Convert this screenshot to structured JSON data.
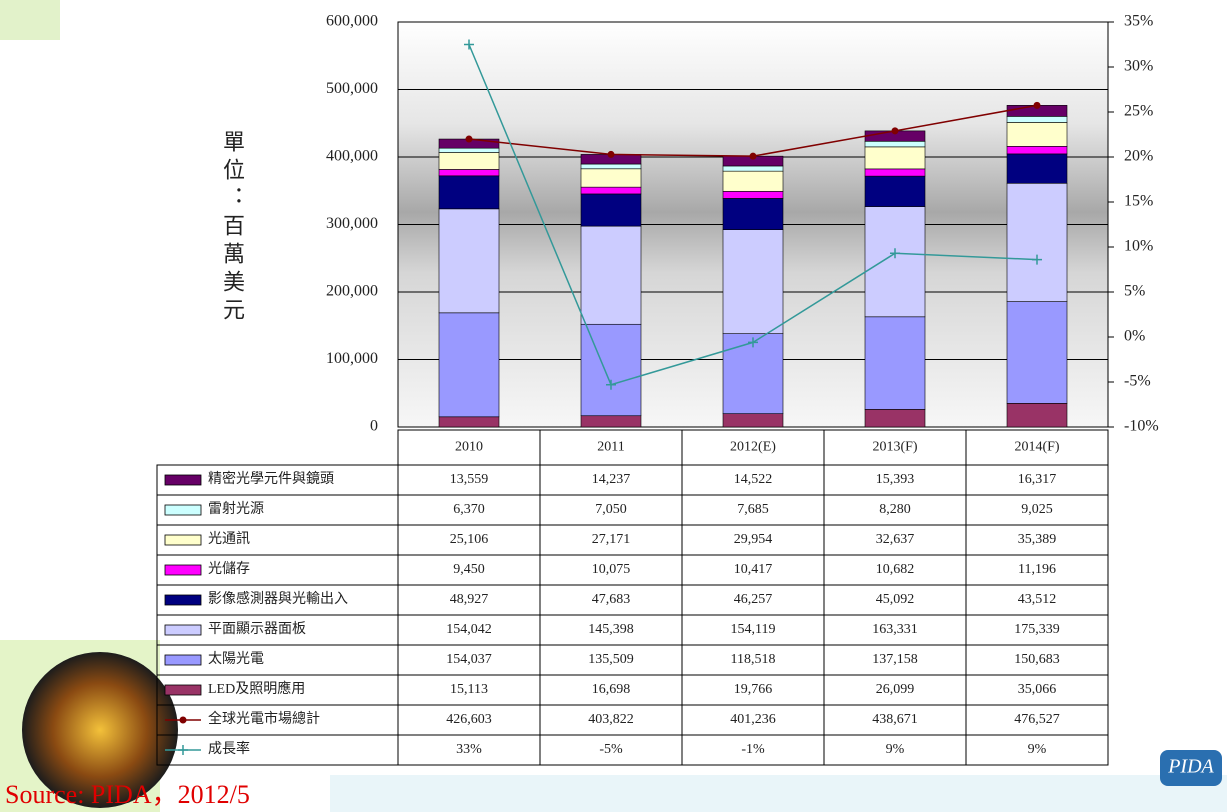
{
  "chart_data": {
    "type": "bar",
    "stacked": true,
    "y_label": "單位：百萬美元",
    "categories": [
      "2010",
      "2011",
      "2012(E)",
      "2013(F)",
      "2014(F)"
    ],
    "ylim": [
      0,
      600000
    ],
    "yticks": [
      0,
      {
        "value": 100000,
        "label": "100,000"
      },
      {
        "value": 200000,
        "label": "200,000"
      },
      {
        "value": 300000,
        "label": "300,000"
      },
      {
        "value": 400000,
        "label": "400,000"
      },
      {
        "value": 500000,
        "label": "500,000"
      },
      {
        "value": 600000,
        "label": "600,000"
      }
    ],
    "y2lim": [
      -10,
      35
    ],
    "y2ticks": [
      {
        "value": -10,
        "label": "-10%"
      },
      {
        "value": -5,
        "label": "-5%"
      },
      {
        "value": 0,
        "label": "0%"
      },
      {
        "value": 5,
        "label": "5%"
      },
      {
        "value": 10,
        "label": "10%"
      },
      {
        "value": 15,
        "label": "15%"
      },
      {
        "value": 20,
        "label": "20%"
      },
      {
        "value": 25,
        "label": "25%"
      },
      {
        "value": 30,
        "label": "30%"
      },
      {
        "value": 35,
        "label": "35%"
      }
    ],
    "grid": true,
    "series": [
      {
        "name": "精密光學元件與鏡頭",
        "type": "bar",
        "color": "#660066",
        "values": [
          13559,
          14237,
          14522,
          15393,
          16317
        ],
        "value_labels": [
          "13,559",
          "14,237",
          "14,522",
          "15,393",
          "16,317"
        ]
      },
      {
        "name": "雷射光源",
        "type": "bar",
        "color": "#ccffff",
        "values": [
          6370,
          7050,
          7685,
          8280,
          9025
        ],
        "value_labels": [
          "6,370",
          "7,050",
          "7,685",
          "8,280",
          "9,025"
        ]
      },
      {
        "name": "光通訊",
        "type": "bar",
        "color": "#ffffcc",
        "values": [
          25106,
          27171,
          29954,
          32637,
          35389
        ],
        "value_labels": [
          "25,106",
          "27,171",
          "29,954",
          "32,637",
          "35,389"
        ]
      },
      {
        "name": "光儲存",
        "type": "bar",
        "color": "#ff00ff",
        "values": [
          9450,
          10075,
          10417,
          10682,
          11196
        ],
        "value_labels": [
          "9,450",
          "10,075",
          "10,417",
          "10,682",
          "11,196"
        ]
      },
      {
        "name": "影像感測器與光輸出入",
        "type": "bar",
        "color": "#000080",
        "values": [
          48927,
          47683,
          46257,
          45092,
          43512
        ],
        "value_labels": [
          "48,927",
          "47,683",
          "46,257",
          "45,092",
          "43,512"
        ]
      },
      {
        "name": "平面顯示器面板",
        "type": "bar",
        "color": "#ccccff",
        "values": [
          154042,
          145398,
          154119,
          163331,
          175339
        ],
        "value_labels": [
          "154,042",
          "145,398",
          "154,119",
          "163,331",
          "175,339"
        ]
      },
      {
        "name": "太陽光電",
        "type": "bar",
        "color": "#9999ff",
        "values": [
          154037,
          135509,
          118518,
          137158,
          150683
        ],
        "value_labels": [
          "154,037",
          "135,509",
          "118,518",
          "137,158",
          "150,683"
        ]
      },
      {
        "name": "LED及照明應用",
        "type": "bar",
        "color": "#993366",
        "values": [
          15113,
          16698,
          19766,
          26099,
          35066
        ],
        "value_labels": [
          "15,113",
          "16,698",
          "19,766",
          "26,099",
          "35,066"
        ]
      },
      {
        "name": "全球光電市場總計",
        "type": "line",
        "color": "#800000",
        "values": [
          426603,
          403822,
          401236,
          438671,
          476527
        ],
        "value_labels": [
          "426,603",
          "403,822",
          "401,236",
          "438,671",
          "476,527"
        ]
      },
      {
        "name": "成長率",
        "type": "line",
        "axis": "y2",
        "color": "#339999",
        "values": [
          32.5,
          -5.3,
          -0.6,
          9.3,
          8.6
        ],
        "value_labels": [
          "33%",
          "-5%",
          "-1%",
          "9%",
          "9%"
        ]
      }
    ],
    "annotations": {
      "source": "Source: PIDA，2012/5",
      "logo": "PIDA"
    }
  }
}
